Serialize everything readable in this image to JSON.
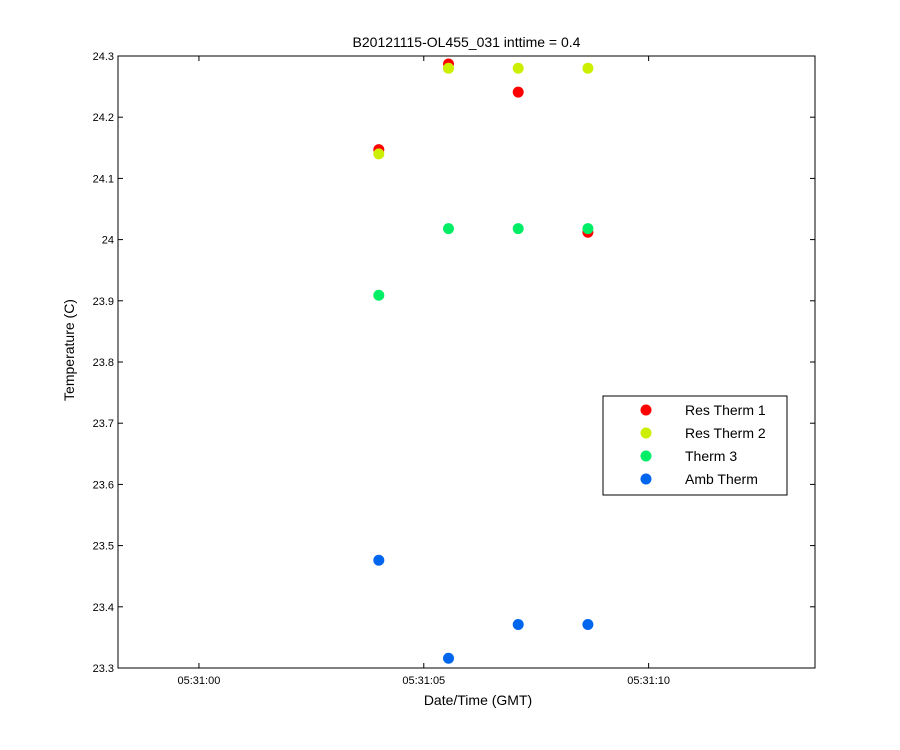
{
  "chart_data": {
    "type": "scatter",
    "title": "B20121115-OL455_031 inttime = 0.4",
    "xlabel": "Date/Time (GMT)",
    "ylabel": "Temperature (C)",
    "x_unit": "seconds after 05:31:00 (GMT)",
    "xlim": [
      -1.8,
      13.7
    ],
    "ylim": [
      23.3,
      24.3
    ],
    "xticks": [
      0,
      5,
      10
    ],
    "xtick_labels": [
      "05:31:00",
      "05:31:05",
      "05:31:10"
    ],
    "yticks": [
      23.3,
      23.4,
      23.5,
      23.6,
      23.7,
      23.8,
      23.9,
      24,
      24.1,
      24.2,
      24.3
    ],
    "ytick_labels": [
      "23.3",
      "23.4",
      "23.5",
      "23.6",
      "23.7",
      "23.8",
      "23.9",
      "24",
      "24.1",
      "24.2",
      "24.3"
    ],
    "grid": false,
    "legend_position": "right",
    "series": [
      {
        "name": "Res Therm 1",
        "color": "#ff0000",
        "points": [
          {
            "x": 4.0,
            "y": 24.147
          },
          {
            "x": 5.55,
            "y": 24.287
          },
          {
            "x": 7.1,
            "y": 24.241
          },
          {
            "x": 8.65,
            "y": 24.012
          }
        ]
      },
      {
        "name": "Res Therm 2",
        "color": "#ccee00",
        "points": [
          {
            "x": 4.0,
            "y": 24.14
          },
          {
            "x": 5.55,
            "y": 24.28
          },
          {
            "x": 7.1,
            "y": 24.28
          },
          {
            "x": 8.65,
            "y": 24.28
          }
        ]
      },
      {
        "name": "Therm 3",
        "color": "#00ee66",
        "points": [
          {
            "x": 4.0,
            "y": 23.909
          },
          {
            "x": 5.55,
            "y": 24.018
          },
          {
            "x": 7.1,
            "y": 24.018
          },
          {
            "x": 8.65,
            "y": 24.018
          }
        ]
      },
      {
        "name": "Amb Therm",
        "color": "#0066ee",
        "points": [
          {
            "x": 4.0,
            "y": 23.476
          },
          {
            "x": 5.55,
            "y": 23.316
          },
          {
            "x": 7.1,
            "y": 23.371
          },
          {
            "x": 8.65,
            "y": 23.371
          }
        ]
      }
    ]
  }
}
